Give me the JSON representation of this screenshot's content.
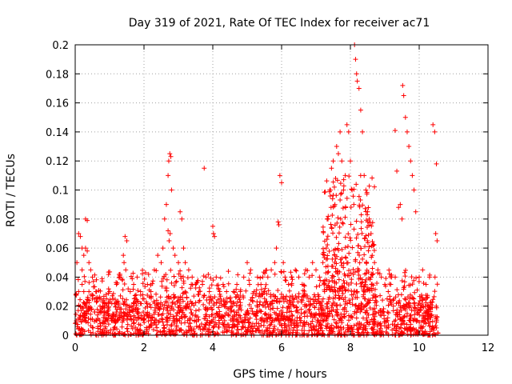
{
  "chart_data": {
    "type": "scatter",
    "title": "Day 319 of 2021, Rate Of TEC Index for receiver ac71",
    "xlabel": "GPS time / hours",
    "ylabel": "ROTI / TECUs",
    "xlim": [
      0,
      12
    ],
    "ylim": [
      0,
      0.2
    ],
    "x_ticks": [
      0,
      2,
      4,
      6,
      8,
      10,
      12
    ],
    "y_ticks": [
      0,
      0.02,
      0.04,
      0.06,
      0.08,
      0.1,
      0.12,
      0.14,
      0.16,
      0.18,
      0.2
    ],
    "x_tick_labels": [
      "0",
      "2",
      "4",
      "6",
      "8",
      "10",
      "12"
    ],
    "y_tick_labels": [
      "0",
      "0.02",
      "0.04",
      "0.06",
      "0.08",
      "0.1",
      "0.12",
      "0.14",
      "0.16",
      "0.18",
      "0.2"
    ],
    "grid": true,
    "marker": "+",
    "color": "#ff0000",
    "series": [
      {
        "x": [
          0.05,
          0.1,
          0.15,
          0.2,
          0.25,
          0.3,
          0.35,
          0.4,
          0.45,
          0.5,
          0.1,
          0.15,
          0.2,
          0.3,
          0.35,
          0.4,
          0.5,
          0.3,
          0.33,
          0.2,
          0.25,
          0.6,
          0.7,
          0.8,
          0.9,
          1.0,
          1.1,
          1.2,
          1.3,
          1.4,
          1.45,
          1.5,
          1.42,
          1.47,
          1.6,
          1.7,
          1.8,
          1.9,
          2.0,
          2.1,
          2.2,
          2.3,
          2.4,
          2.5,
          2.55,
          2.6,
          2.65,
          2.7,
          2.72,
          2.75,
          2.78,
          2.8,
          2.73,
          2.76,
          2.7,
          2.85,
          2.9,
          3.0,
          3.05,
          3.1,
          3.15,
          3.2,
          3.3,
          3.4,
          3.5,
          3.6,
          3.7,
          3.75,
          3.8,
          3.9,
          4.0,
          4.02,
          4.05,
          4.1,
          4.2,
          4.3,
          4.4,
          4.5,
          4.6,
          4.7,
          4.8,
          4.9,
          5.0,
          5.1,
          5.2,
          5.3,
          5.4,
          5.5,
          5.6,
          5.7,
          5.8,
          5.85,
          5.9,
          5.92,
          5.95,
          6.0,
          6.05,
          6.1,
          6.2,
          6.3,
          6.4,
          6.5,
          6.6,
          6.7,
          6.8,
          6.9,
          7.0,
          7.1,
          7.2,
          7.3,
          7.35,
          7.4,
          7.45,
          7.5,
          7.55,
          7.6,
          7.65,
          7.7,
          7.75,
          7.8,
          7.85,
          7.9,
          7.95,
          8.0,
          8.05,
          8.1,
          8.12,
          8.15,
          8.18,
          8.2,
          8.25,
          8.3,
          8.35,
          8.4,
          8.45,
          8.5,
          8.55,
          8.6,
          8.7,
          8.8,
          8.9,
          9.0,
          9.1,
          9.2,
          9.3,
          9.35,
          9.4,
          9.45,
          9.5,
          9.52,
          9.55,
          9.6,
          9.65,
          9.7,
          9.75,
          9.8,
          9.85,
          9.9,
          10.0,
          10.1,
          10.2,
          10.3,
          10.4,
          10.45,
          10.5,
          10.48,
          10.52,
          10.46
        ],
        "y": [
          0.05,
          0.07,
          0.068,
          0.06,
          0.055,
          0.08,
          0.079,
          0.05,
          0.045,
          0.04,
          0.03,
          0.02,
          0.035,
          0.06,
          0.058,
          0.03,
          0.025,
          0.02,
          0.015,
          0.045,
          0.03,
          0.03,
          0.025,
          0.02,
          0.028,
          0.03,
          0.025,
          0.035,
          0.04,
          0.055,
          0.068,
          0.065,
          0.05,
          0.045,
          0.03,
          0.035,
          0.04,
          0.03,
          0.025,
          0.035,
          0.03,
          0.045,
          0.055,
          0.05,
          0.06,
          0.08,
          0.09,
          0.11,
          0.12,
          0.125,
          0.123,
          0.1,
          0.065,
          0.07,
          0.072,
          0.06,
          0.055,
          0.05,
          0.085,
          0.08,
          0.06,
          0.05,
          0.045,
          0.04,
          0.035,
          0.03,
          0.035,
          0.115,
          0.04,
          0.03,
          0.075,
          0.07,
          0.068,
          0.04,
          0.03,
          0.035,
          0.03,
          0.025,
          0.03,
          0.035,
          0.03,
          0.04,
          0.05,
          0.045,
          0.03,
          0.04,
          0.035,
          0.03,
          0.04,
          0.045,
          0.05,
          0.06,
          0.078,
          0.076,
          0.11,
          0.105,
          0.05,
          0.04,
          0.035,
          0.04,
          0.045,
          0.04,
          0.035,
          0.045,
          0.04,
          0.05,
          0.045,
          0.04,
          0.05,
          0.06,
          0.08,
          0.1,
          0.115,
          0.12,
          0.09,
          0.13,
          0.125,
          0.14,
          0.12,
          0.1,
          0.11,
          0.145,
          0.14,
          0.12,
          0.1,
          0.09,
          0.2,
          0.19,
          0.18,
          0.175,
          0.17,
          0.155,
          0.14,
          0.11,
          0.1,
          0.085,
          0.08,
          0.07,
          0.05,
          0.045,
          0.04,
          0.035,
          0.03,
          0.04,
          0.141,
          0.113,
          0.088,
          0.09,
          0.08,
          0.172,
          0.165,
          0.15,
          0.14,
          0.13,
          0.12,
          0.11,
          0.1,
          0.085,
          0.04,
          0.045,
          0.035,
          0.04,
          0.145,
          0.14,
          0.118,
          0.07,
          0.065,
          0.04
        ]
      }
    ],
    "dense_band": [
      {
        "x0": 0,
        "x1": 10.55,
        "ymin": 0.0,
        "ymax": 0.028,
        "n": 1400
      },
      {
        "x0": 0,
        "x1": 10.55,
        "ymin": 0.01,
        "ymax": 0.045,
        "n": 600
      },
      {
        "x0": 7.2,
        "x1": 8.7,
        "ymin": 0.03,
        "ymax": 0.11,
        "n": 260
      }
    ]
  }
}
